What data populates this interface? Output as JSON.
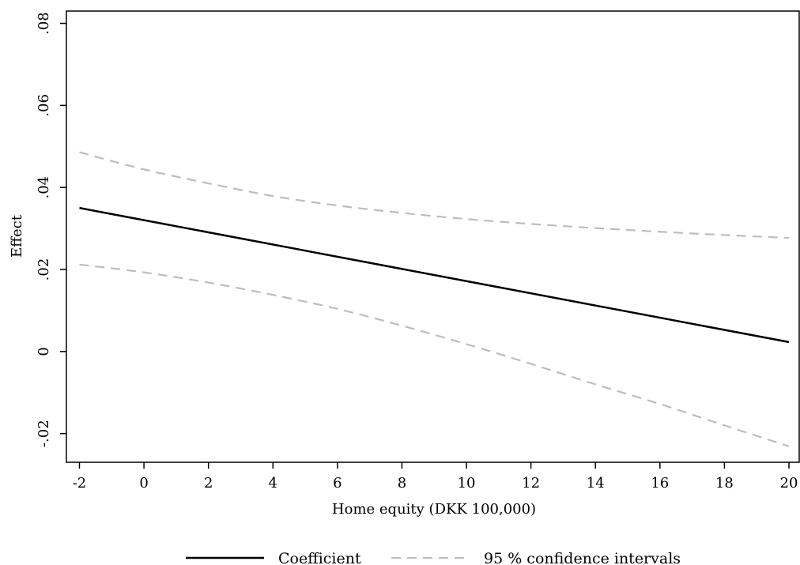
{
  "chart_data": {
    "type": "line",
    "title": "",
    "xlabel": "Home equity (DKK 100,000)",
    "ylabel": "Effect",
    "xlim": [
      -2,
      20
    ],
    "ylim": [
      -0.027,
      0.083
    ],
    "x_ticks": [
      -2,
      0,
      2,
      4,
      6,
      8,
      10,
      12,
      14,
      16,
      18,
      20
    ],
    "x_tick_labels": [
      "-2",
      "0",
      "2",
      "4",
      "6",
      "8",
      "10",
      "12",
      "14",
      "16",
      "18",
      "20"
    ],
    "y_ticks": [
      -0.02,
      0,
      0.02,
      0.04,
      0.06,
      0.08
    ],
    "y_tick_labels": [
      "-.02",
      "0",
      ".02",
      ".04",
      ".06",
      ".08"
    ],
    "grid": false,
    "legend_position": "bottom",
    "series": [
      {
        "name": "Coefficient",
        "style": "solid",
        "color": "#000000",
        "x": [
          -2,
          20
        ],
        "y": [
          0.035,
          0.0023
        ]
      },
      {
        "name": "95 % confidence intervals",
        "style": "dashed",
        "color": "#bdbdbd",
        "x": [
          -2,
          0,
          2,
          4,
          6,
          8,
          10,
          12,
          14,
          16,
          18,
          20
        ],
        "y": [
          0.0486,
          0.0444,
          0.041,
          0.0379,
          0.0356,
          0.0338,
          0.0323,
          0.0311,
          0.0301,
          0.0292,
          0.0284,
          0.0277
        ]
      },
      {
        "name": "95 % confidence intervals",
        "style": "dashed",
        "color": "#bdbdbd",
        "show_in_legend": false,
        "x": [
          -2,
          0,
          2,
          4,
          6,
          8,
          10,
          12,
          14,
          16,
          18,
          20
        ],
        "y": [
          0.0212,
          0.0193,
          0.0168,
          0.0138,
          0.0104,
          0.0063,
          0.0018,
          -0.003,
          -0.008,
          -0.0128,
          -0.018,
          -0.0231
        ]
      }
    ]
  }
}
